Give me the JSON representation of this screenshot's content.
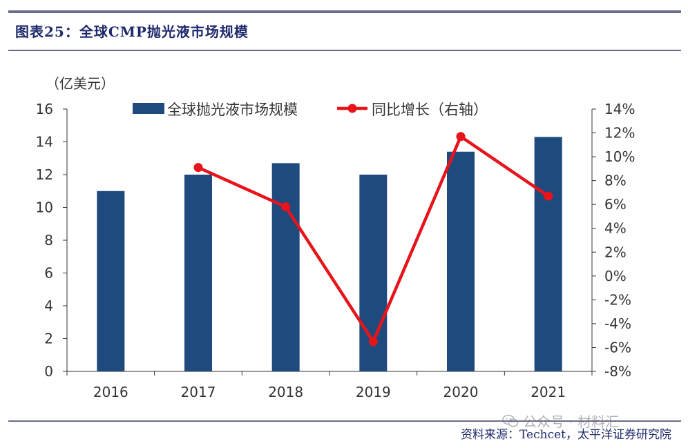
{
  "header": {
    "title": "图表25：全球CMP抛光液市场规模"
  },
  "footer": {
    "source": "资料来源：Techcet，太平洋证券研究院",
    "watermark": "公众号 · 材料汇"
  },
  "colors": {
    "bar": "#1f4a7e",
    "line": "#e8141b",
    "axis": "#333333",
    "rule": "#6a6c8a",
    "title": "#1f2a6b"
  },
  "chart_data": {
    "type": "bar",
    "title": "全球CMP抛光液市场规模",
    "ylabel": "（亿美元）",
    "y2label": "",
    "categories": [
      "2016",
      "2017",
      "2018",
      "2019",
      "2020",
      "2021"
    ],
    "series": [
      {
        "name": "全球抛光液市场规模",
        "type": "bar",
        "axis": "left",
        "values": [
          11.0,
          12.0,
          12.7,
          12.0,
          13.4,
          14.3
        ]
      },
      {
        "name": "同比增长（右轴）",
        "type": "line",
        "axis": "right",
        "values": [
          null,
          9.1,
          5.8,
          -5.5,
          11.7,
          6.7
        ]
      }
    ],
    "ylim": [
      0,
      16
    ],
    "yticks": [
      "0",
      "2",
      "4",
      "6",
      "8",
      "10",
      "12",
      "14",
      "16"
    ],
    "y2lim": [
      -8,
      14
    ],
    "y2ticks": [
      "-8%",
      "-6%",
      "-4%",
      "-2%",
      "0%",
      "2%",
      "4%",
      "6%",
      "8%",
      "10%",
      "12%",
      "14%"
    ],
    "legend_position": "top-center",
    "grid": false
  }
}
